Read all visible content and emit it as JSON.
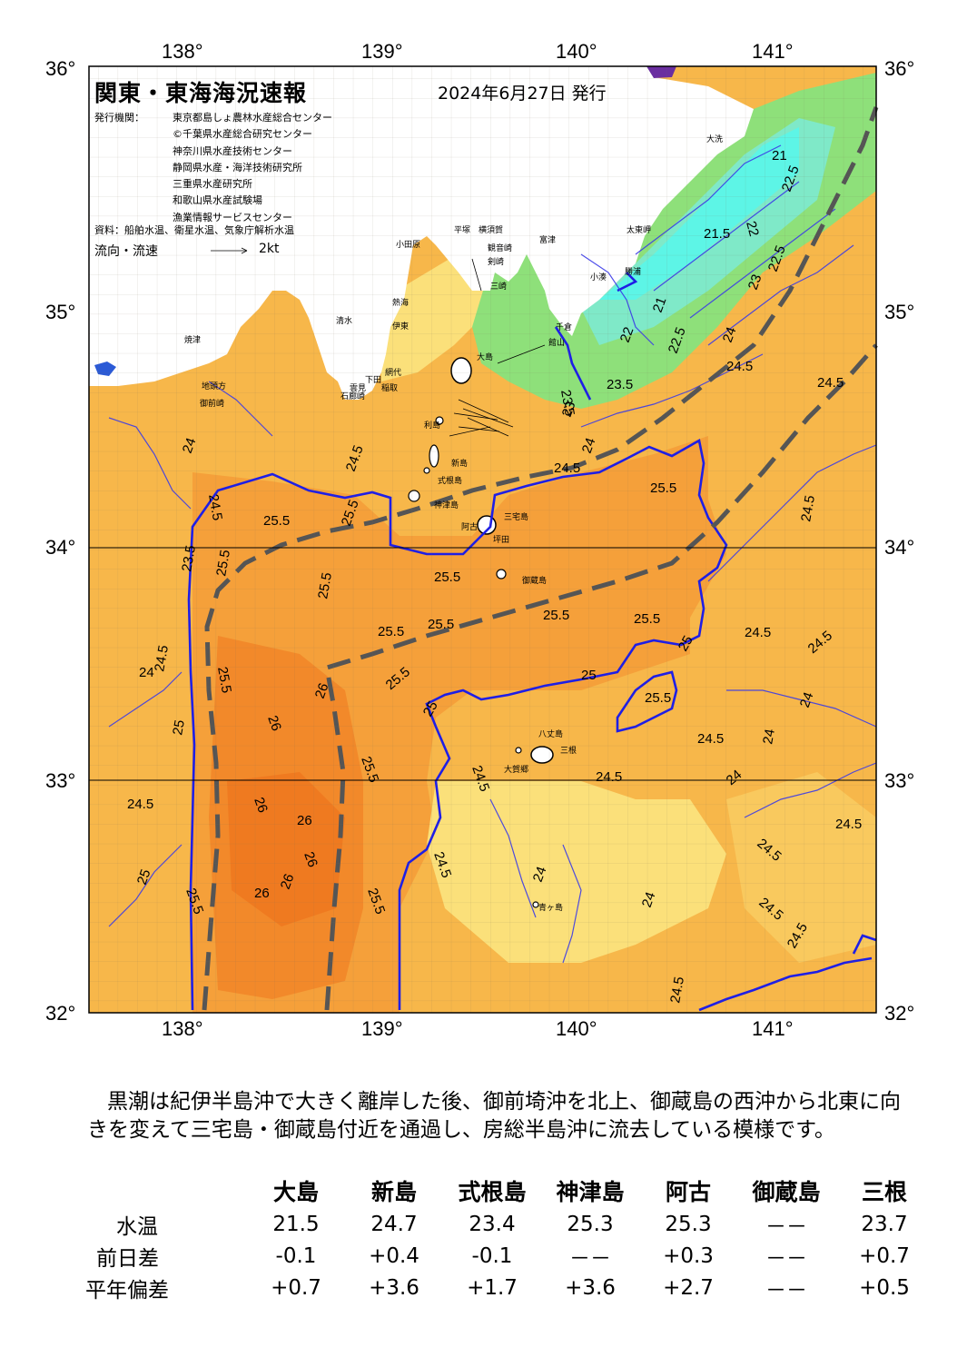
{
  "map": {
    "title": "関東・東海海況速報",
    "date": "2024年6月27日 発行",
    "issuer_label": "発行機関：",
    "issuers": [
      "東京都島しょ農林水産総合センター",
      "©千葉県水産総合研究センター",
      "神奈川県水産技術センター",
      "静岡県水産・海洋技術研究所",
      "三重県水産研究所",
      "和歌山県水産試験場",
      "漁業情報サービスセンター"
    ],
    "source": "資料：船舶水温、衛星水温、気象庁解析水温",
    "flow_label": "流向・流速",
    "flow_scale": "2kt",
    "lon_ticks": [
      "138°",
      "139°",
      "140°",
      "141°"
    ],
    "lat_ticks": [
      "36°",
      "35°",
      "34°",
      "33°",
      "32°"
    ],
    "places": [
      "大洗",
      "太東岬",
      "小湊",
      "勝浦",
      "館山",
      "千倉",
      "富津",
      "横須賀",
      "平塚",
      "小田原",
      "観音崎",
      "剣崎",
      "三崎",
      "熱海",
      "伊東",
      "網代",
      "稲取",
      "下田",
      "石廊崎",
      "雲見",
      "地頭方",
      "御前崎",
      "焼津",
      "清水",
      "大島",
      "利島",
      "新島",
      "式根島",
      "神津島",
      "三宅島",
      "阿古",
      "坪田",
      "御蔵島",
      "八丈島",
      "三根",
      "大賀郷",
      "青ヶ島"
    ],
    "isotherm_labels": [
      "21",
      "21.5",
      "22",
      "22.5",
      "23",
      "23.5",
      "24",
      "24.5",
      "25",
      "25.5",
      "26"
    ],
    "colors": {
      "sea_warm": "#f7b74a",
      "sea_warmer": "#f5a03a",
      "sea_warmest": "#f07e22",
      "sea_cool": "#fbe07a",
      "sea_cold": "#8ee07a",
      "sea_colder": "#5df5d6",
      "land": "#ffffff",
      "contour": "#1e1ee6",
      "kuroshio_axis": "#555555"
    }
  },
  "summary": "黒潮は紀伊半島沖で大きく離岸した後、御前埼沖を北上、御蔵島の西沖から北東に向きを変えて三宅島・御蔵島付近を通過し、房総半島沖に流去している模様です。",
  "table": {
    "columns": [
      "大島",
      "新島",
      "式根島",
      "神津島",
      "阿古",
      "御蔵島",
      "三根"
    ],
    "rows": [
      {
        "label": "水温",
        "values": [
          "21.5",
          "24.7",
          "23.4",
          "25.3",
          "25.3",
          "－－",
          "23.7"
        ]
      },
      {
        "label": "前日差",
        "values": [
          "-0.1",
          "+0.4",
          "-0.1",
          "－－",
          "+0.3",
          "－－",
          "+0.7"
        ]
      },
      {
        "label": "平年偏差",
        "values": [
          "+0.7",
          "+3.6",
          "+1.7",
          "+3.6",
          "+2.7",
          "－－",
          "+0.5"
        ]
      }
    ]
  }
}
